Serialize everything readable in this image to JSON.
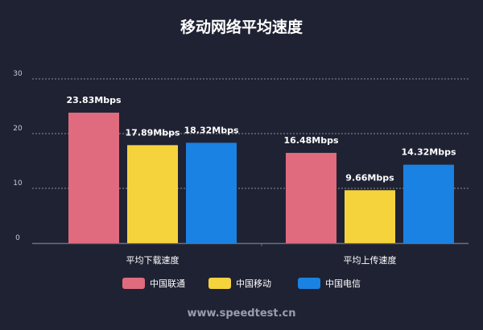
{
  "chart_data": {
    "type": "bar",
    "title": "移动网络平均速度",
    "categories": [
      "平均下载速度",
      "平均上传速度"
    ],
    "series": [
      {
        "name": "中国联通",
        "color": "#e06b7e",
        "values": [
          23.83,
          16.48
        ],
        "labels": [
          "23.83Mbps",
          "16.48Mbps"
        ]
      },
      {
        "name": "中国移动",
        "color": "#f5d33d",
        "values": [
          17.89,
          9.66
        ],
        "labels": [
          "17.89Mbps",
          "9.66Mbps"
        ]
      },
      {
        "name": "中国电信",
        "color": "#1a82e2",
        "values": [
          18.32,
          14.32
        ],
        "labels": [
          "18.32Mbps",
          "14.32Mbps"
        ]
      }
    ],
    "yticks": [
      "0",
      "10",
      "20",
      "30"
    ],
    "ylim": [
      0,
      30
    ],
    "grid": true,
    "legend_position": "bottom",
    "background": "#1f2233"
  },
  "footer": "www.speedtest.cn"
}
